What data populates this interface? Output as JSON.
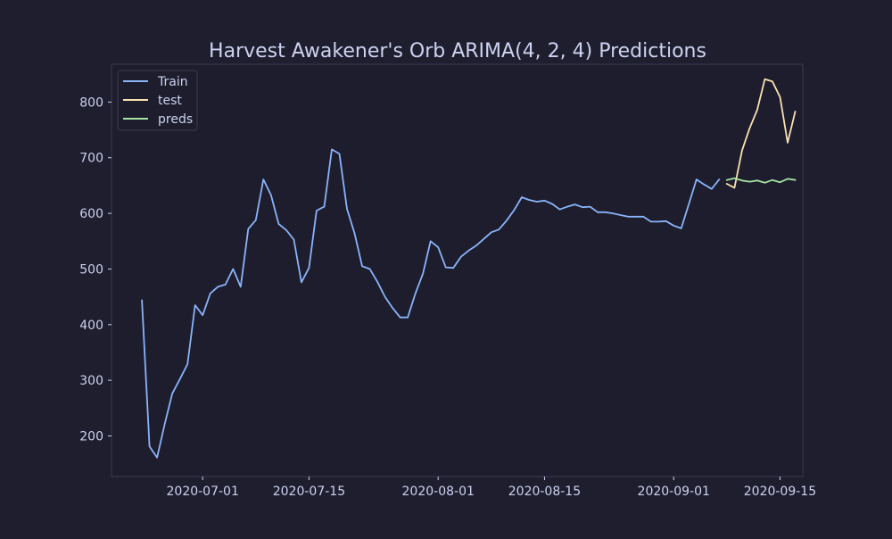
{
  "chart_data": {
    "type": "line",
    "title": "Harvest Awakener's Orb ARIMA(4, 2, 4) Predictions",
    "xlabel": "",
    "ylabel": "",
    "x_axis_type": "date",
    "xlim": [
      "2020-06-19",
      "2020-09-18"
    ],
    "ylim": [
      127,
      868
    ],
    "x_ticks": [
      "2020-07-01",
      "2020-07-15",
      "2020-08-01",
      "2020-08-15",
      "2020-09-01",
      "2020-09-15"
    ],
    "y_ticks": [
      200,
      300,
      400,
      500,
      600,
      700,
      800
    ],
    "grid": false,
    "legend": {
      "position": "top-left",
      "entries": [
        "Train",
        "test",
        "preds"
      ]
    },
    "colors": {
      "background": "#1f1e2e",
      "axes_face": "#1e1d2d",
      "spine": "#3a3a4e",
      "text": "#cdd2f0",
      "train": "#89b4fa",
      "test": "#f9e2af",
      "preds": "#a6e3a1"
    },
    "series": [
      {
        "name": "Train",
        "points": [
          [
            "2020-06-23",
            444
          ],
          [
            "2020-06-24",
            181
          ],
          [
            "2020-06-25",
            161
          ],
          [
            "2020-06-26",
            221
          ],
          [
            "2020-06-27",
            276
          ],
          [
            "2020-06-28",
            302
          ],
          [
            "2020-06-29",
            329
          ],
          [
            "2020-06-30",
            435
          ],
          [
            "2020-07-01",
            417
          ],
          [
            "2020-07-02",
            456
          ],
          [
            "2020-07-03",
            468
          ],
          [
            "2020-07-04",
            472
          ],
          [
            "2020-07-05",
            500
          ],
          [
            "2020-07-06",
            468
          ],
          [
            "2020-07-07",
            572
          ],
          [
            "2020-07-08",
            588
          ],
          [
            "2020-07-09",
            661
          ],
          [
            "2020-07-10",
            633
          ],
          [
            "2020-07-11",
            581
          ],
          [
            "2020-07-12",
            570
          ],
          [
            "2020-07-13",
            553
          ],
          [
            "2020-07-14",
            476
          ],
          [
            "2020-07-15",
            502
          ],
          [
            "2020-07-16",
            605
          ],
          [
            "2020-07-17",
            612
          ],
          [
            "2020-07-18",
            715
          ],
          [
            "2020-07-19",
            707
          ],
          [
            "2020-07-20",
            608
          ],
          [
            "2020-07-21",
            564
          ],
          [
            "2020-07-22",
            505
          ],
          [
            "2020-07-23",
            500
          ],
          [
            "2020-07-24",
            477
          ],
          [
            "2020-07-25",
            450
          ],
          [
            "2020-07-26",
            430
          ],
          [
            "2020-07-27",
            413
          ],
          [
            "2020-07-28",
            413
          ],
          [
            "2020-07-29",
            456
          ],
          [
            "2020-07-30",
            492
          ],
          [
            "2020-07-31",
            550
          ],
          [
            "2020-08-01",
            539
          ],
          [
            "2020-08-02",
            503
          ],
          [
            "2020-08-03",
            502
          ],
          [
            "2020-08-04",
            522
          ],
          [
            "2020-08-05",
            533
          ],
          [
            "2020-08-06",
            542
          ],
          [
            "2020-08-07",
            554
          ],
          [
            "2020-08-08",
            566
          ],
          [
            "2020-08-09",
            571
          ],
          [
            "2020-08-10",
            587
          ],
          [
            "2020-08-11",
            606
          ],
          [
            "2020-08-12",
            629
          ],
          [
            "2020-08-13",
            624
          ],
          [
            "2020-08-14",
            621
          ],
          [
            "2020-08-15",
            623
          ],
          [
            "2020-08-16",
            617
          ],
          [
            "2020-08-17",
            607
          ],
          [
            "2020-08-18",
            612
          ],
          [
            "2020-08-19",
            616
          ],
          [
            "2020-08-20",
            611
          ],
          [
            "2020-08-21",
            612
          ],
          [
            "2020-08-22",
            602
          ],
          [
            "2020-08-23",
            602
          ],
          [
            "2020-08-24",
            600
          ],
          [
            "2020-08-25",
            597
          ],
          [
            "2020-08-26",
            594
          ],
          [
            "2020-08-27",
            594
          ],
          [
            "2020-08-28",
            594
          ],
          [
            "2020-08-29",
            585
          ],
          [
            "2020-08-30",
            585
          ],
          [
            "2020-08-31",
            586
          ],
          [
            "2020-09-01",
            578
          ],
          [
            "2020-09-02",
            573
          ],
          [
            "2020-09-03",
            617
          ],
          [
            "2020-09-04",
            661
          ],
          [
            "2020-09-05",
            652
          ],
          [
            "2020-09-06",
            644
          ],
          [
            "2020-09-07",
            661
          ]
        ]
      },
      {
        "name": "test",
        "points": [
          [
            "2020-09-08",
            653
          ],
          [
            "2020-09-09",
            646
          ],
          [
            "2020-09-10",
            713
          ],
          [
            "2020-09-11",
            753
          ],
          [
            "2020-09-12",
            786
          ],
          [
            "2020-09-13",
            841
          ],
          [
            "2020-09-14",
            837
          ],
          [
            "2020-09-15",
            809
          ],
          [
            "2020-09-16",
            727
          ],
          [
            "2020-09-17",
            783
          ]
        ]
      },
      {
        "name": "preds",
        "points": [
          [
            "2020-09-08",
            660
          ],
          [
            "2020-09-09",
            663
          ],
          [
            "2020-09-10",
            659
          ],
          [
            "2020-09-11",
            657
          ],
          [
            "2020-09-12",
            659
          ],
          [
            "2020-09-13",
            655
          ],
          [
            "2020-09-14",
            660
          ],
          [
            "2020-09-15",
            656
          ],
          [
            "2020-09-16",
            662
          ],
          [
            "2020-09-17",
            660
          ]
        ]
      }
    ]
  }
}
